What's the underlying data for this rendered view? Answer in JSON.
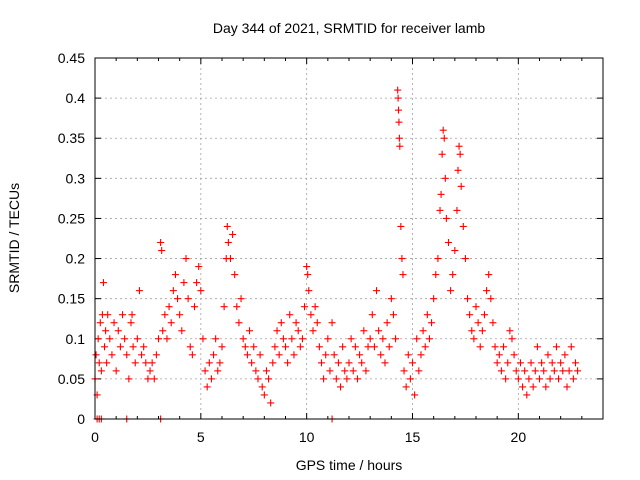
{
  "chart_data": {
    "type": "scatter",
    "title": "Day 344 of 2021, SRMTID for receiver lamb",
    "xlabel": "GPS time / hours",
    "ylabel": "SRMTID / TECUs",
    "xlim": [
      0,
      24
    ],
    "ylim": [
      0,
      0.45
    ],
    "x_ticks": [
      0,
      5,
      10,
      15,
      20
    ],
    "x_tick_labels": [
      "0",
      "5",
      "10",
      "15",
      "20"
    ],
    "y_ticks": [
      0,
      0.05,
      0.1,
      0.15,
      0.2,
      0.25,
      0.3,
      0.35,
      0.4,
      0.45
    ],
    "y_tick_labels": [
      "0",
      "0.05",
      "0.1",
      "0.15",
      "0.2",
      "0.25",
      "0.3",
      "0.35",
      "0.4",
      "0.45"
    ],
    "grid": true,
    "marker": "+",
    "color": "#ff0000",
    "series": [
      {
        "name": "SRMTID",
        "points": [
          [
            0.0,
            0.05
          ],
          [
            0.05,
            0.08
          ],
          [
            0.1,
            0.03
          ],
          [
            0.15,
            0.1
          ],
          [
            0.2,
            0.07
          ],
          [
            0.25,
            0.12
          ],
          [
            0.3,
            0.06
          ],
          [
            0.35,
            0.13
          ],
          [
            0.4,
            0.17
          ],
          [
            0.45,
            0.09
          ],
          [
            0.5,
            0.11
          ],
          [
            0.55,
            0.07
          ],
          [
            0.6,
            0.13
          ],
          [
            0.7,
            0.1
          ],
          [
            0.8,
            0.08
          ],
          [
            0.9,
            0.12
          ],
          [
            1.0,
            0.06
          ],
          [
            1.1,
            0.11
          ],
          [
            1.2,
            0.09
          ],
          [
            1.3,
            0.13
          ],
          [
            1.4,
            0.1
          ],
          [
            1.5,
            0.08
          ],
          [
            1.6,
            0.05
          ],
          [
            1.7,
            0.12
          ],
          [
            1.75,
            0.13
          ],
          [
            1.8,
            0.09
          ],
          [
            1.9,
            0.07
          ],
          [
            2.0,
            0.1
          ],
          [
            2.1,
            0.16
          ],
          [
            2.2,
            0.08
          ],
          [
            2.3,
            0.09
          ],
          [
            2.4,
            0.07
          ],
          [
            2.5,
            0.05
          ],
          [
            2.6,
            0.06
          ],
          [
            2.7,
            0.07
          ],
          [
            2.8,
            0.05
          ],
          [
            2.9,
            0.08
          ],
          [
            3.0,
            0.1
          ],
          [
            3.1,
            0.22
          ],
          [
            3.15,
            0.21
          ],
          [
            3.2,
            0.11
          ],
          [
            3.3,
            0.13
          ],
          [
            3.4,
            0.1
          ],
          [
            3.5,
            0.14
          ],
          [
            3.6,
            0.12
          ],
          [
            3.7,
            0.16
          ],
          [
            3.8,
            0.18
          ],
          [
            3.9,
            0.15
          ],
          [
            4.0,
            0.13
          ],
          [
            4.1,
            0.11
          ],
          [
            4.2,
            0.17
          ],
          [
            4.3,
            0.2
          ],
          [
            4.4,
            0.15
          ],
          [
            4.5,
            0.09
          ],
          [
            4.6,
            0.08
          ],
          [
            4.7,
            0.14
          ],
          [
            4.8,
            0.17
          ],
          [
            4.9,
            0.19
          ],
          [
            5.0,
            0.16
          ],
          [
            5.1,
            0.1
          ],
          [
            5.2,
            0.06
          ],
          [
            5.3,
            0.04
          ],
          [
            5.4,
            0.07
          ],
          [
            5.5,
            0.05
          ],
          [
            5.6,
            0.08
          ],
          [
            5.7,
            0.1
          ],
          [
            5.8,
            0.06
          ],
          [
            5.9,
            0.07
          ],
          [
            6.0,
            0.09
          ],
          [
            6.1,
            0.14
          ],
          [
            6.2,
            0.2
          ],
          [
            6.25,
            0.24
          ],
          [
            6.3,
            0.22
          ],
          [
            6.4,
            0.2
          ],
          [
            6.5,
            0.23
          ],
          [
            6.6,
            0.18
          ],
          [
            6.7,
            0.14
          ],
          [
            6.8,
            0.12
          ],
          [
            6.9,
            0.15
          ],
          [
            7.0,
            0.1
          ],
          [
            7.1,
            0.09
          ],
          [
            7.2,
            0.08
          ],
          [
            7.3,
            0.11
          ],
          [
            7.4,
            0.07
          ],
          [
            7.5,
            0.09
          ],
          [
            7.6,
            0.06
          ],
          [
            7.7,
            0.05
          ],
          [
            7.8,
            0.08
          ],
          [
            7.9,
            0.04
          ],
          [
            8.0,
            0.03
          ],
          [
            8.1,
            0.06
          ],
          [
            8.2,
            0.05
          ],
          [
            8.3,
            0.02
          ],
          [
            8.4,
            0.07
          ],
          [
            8.5,
            0.09
          ],
          [
            8.6,
            0.11
          ],
          [
            8.7,
            0.08
          ],
          [
            8.8,
            0.12
          ],
          [
            8.9,
            0.1
          ],
          [
            9.0,
            0.09
          ],
          [
            9.1,
            0.07
          ],
          [
            9.2,
            0.13
          ],
          [
            9.3,
            0.1
          ],
          [
            9.4,
            0.08
          ],
          [
            9.5,
            0.12
          ],
          [
            9.6,
            0.11
          ],
          [
            9.7,
            0.09
          ],
          [
            9.8,
            0.1
          ],
          [
            9.9,
            0.14
          ],
          [
            10.0,
            0.19
          ],
          [
            10.05,
            0.18
          ],
          [
            10.1,
            0.16
          ],
          [
            10.2,
            0.13
          ],
          [
            10.3,
            0.11
          ],
          [
            10.4,
            0.14
          ],
          [
            10.5,
            0.12
          ],
          [
            10.6,
            0.09
          ],
          [
            10.7,
            0.07
          ],
          [
            10.8,
            0.05
          ],
          [
            10.9,
            0.08
          ],
          [
            11.0,
            0.1
          ],
          [
            11.1,
            0.06
          ],
          [
            11.2,
            0.12
          ],
          [
            11.3,
            0.08
          ],
          [
            11.4,
            0.05
          ],
          [
            11.5,
            0.07
          ],
          [
            11.6,
            0.04
          ],
          [
            11.7,
            0.09
          ],
          [
            11.8,
            0.06
          ],
          [
            11.9,
            0.05
          ],
          [
            12.0,
            0.07
          ],
          [
            12.1,
            0.1
          ],
          [
            12.2,
            0.06
          ],
          [
            12.3,
            0.09
          ],
          [
            12.4,
            0.05
          ],
          [
            12.5,
            0.08
          ],
          [
            12.6,
            0.07
          ],
          [
            12.7,
            0.11
          ],
          [
            12.8,
            0.06
          ],
          [
            12.9,
            0.09
          ],
          [
            13.0,
            0.1
          ],
          [
            13.1,
            0.13
          ],
          [
            13.2,
            0.09
          ],
          [
            13.3,
            0.16
          ],
          [
            13.4,
            0.11
          ],
          [
            13.5,
            0.08
          ],
          [
            13.6,
            0.1
          ],
          [
            13.7,
            0.07
          ],
          [
            13.8,
            0.12
          ],
          [
            13.9,
            0.09
          ],
          [
            14.0,
            0.15
          ],
          [
            14.1,
            0.13
          ],
          [
            14.2,
            0.1
          ],
          [
            14.3,
            0.41
          ],
          [
            14.32,
            0.4
          ],
          [
            14.34,
            0.385
          ],
          [
            14.36,
            0.37
          ],
          [
            14.38,
            0.35
          ],
          [
            14.4,
            0.34
          ],
          [
            14.45,
            0.24
          ],
          [
            14.5,
            0.2
          ],
          [
            14.55,
            0.18
          ],
          [
            14.6,
            0.06
          ],
          [
            14.7,
            0.04
          ],
          [
            14.8,
            0.08
          ],
          [
            14.9,
            0.05
          ],
          [
            15.0,
            0.07
          ],
          [
            15.1,
            0.03
          ],
          [
            15.2,
            0.1
          ],
          [
            15.3,
            0.06
          ],
          [
            15.4,
            0.08
          ],
          [
            15.5,
            0.11
          ],
          [
            15.6,
            0.09
          ],
          [
            15.7,
            0.13
          ],
          [
            15.8,
            0.1
          ],
          [
            15.9,
            0.12
          ],
          [
            16.0,
            0.15
          ],
          [
            16.1,
            0.18
          ],
          [
            16.2,
            0.2
          ],
          [
            16.3,
            0.26
          ],
          [
            16.35,
            0.28
          ],
          [
            16.4,
            0.33
          ],
          [
            16.45,
            0.36
          ],
          [
            16.5,
            0.35
          ],
          [
            16.55,
            0.3
          ],
          [
            16.6,
            0.25
          ],
          [
            16.7,
            0.22
          ],
          [
            16.8,
            0.16
          ],
          [
            16.9,
            0.18
          ],
          [
            17.0,
            0.21
          ],
          [
            17.1,
            0.26
          ],
          [
            17.15,
            0.31
          ],
          [
            17.2,
            0.34
          ],
          [
            17.25,
            0.33
          ],
          [
            17.3,
            0.29
          ],
          [
            17.4,
            0.24
          ],
          [
            17.5,
            0.2
          ],
          [
            17.6,
            0.15
          ],
          [
            17.7,
            0.13
          ],
          [
            17.8,
            0.11
          ],
          [
            17.9,
            0.1
          ],
          [
            18.0,
            0.14
          ],
          [
            18.1,
            0.12
          ],
          [
            18.2,
            0.09
          ],
          [
            18.3,
            0.11
          ],
          [
            18.4,
            0.13
          ],
          [
            18.5,
            0.16
          ],
          [
            18.6,
            0.18
          ],
          [
            18.7,
            0.15
          ],
          [
            18.8,
            0.12
          ],
          [
            18.9,
            0.09
          ],
          [
            19.0,
            0.07
          ],
          [
            19.1,
            0.08
          ],
          [
            19.2,
            0.06
          ],
          [
            19.3,
            0.09
          ],
          [
            19.4,
            0.05
          ],
          [
            19.5,
            0.07
          ],
          [
            19.6,
            0.11
          ],
          [
            19.7,
            0.1
          ],
          [
            19.8,
            0.08
          ],
          [
            19.9,
            0.06
          ],
          [
            20.0,
            0.05
          ],
          [
            20.1,
            0.07
          ],
          [
            20.2,
            0.04
          ],
          [
            20.3,
            0.06
          ],
          [
            20.4,
            0.03
          ],
          [
            20.5,
            0.05
          ],
          [
            20.6,
            0.07
          ],
          [
            20.7,
            0.04
          ],
          [
            20.8,
            0.06
          ],
          [
            20.9,
            0.09
          ],
          [
            21.0,
            0.05
          ],
          [
            21.1,
            0.07
          ],
          [
            21.2,
            0.06
          ],
          [
            21.3,
            0.04
          ],
          [
            21.4,
            0.08
          ],
          [
            21.5,
            0.05
          ],
          [
            21.6,
            0.07
          ],
          [
            21.7,
            0.06
          ],
          [
            21.8,
            0.09
          ],
          [
            21.9,
            0.05
          ],
          [
            22.0,
            0.07
          ],
          [
            22.1,
            0.06
          ],
          [
            22.2,
            0.08
          ],
          [
            22.3,
            0.04
          ],
          [
            22.4,
            0.06
          ],
          [
            22.5,
            0.09
          ],
          [
            22.6,
            0.05
          ],
          [
            22.7,
            0.07
          ],
          [
            22.8,
            0.06
          ],
          [
            0.1,
            0.0
          ],
          [
            0.2,
            0.0
          ],
          [
            0.3,
            0.0
          ],
          [
            1.5,
            0.0
          ],
          [
            3.1,
            0.0
          ],
          [
            11.2,
            0.0
          ]
        ]
      }
    ]
  }
}
